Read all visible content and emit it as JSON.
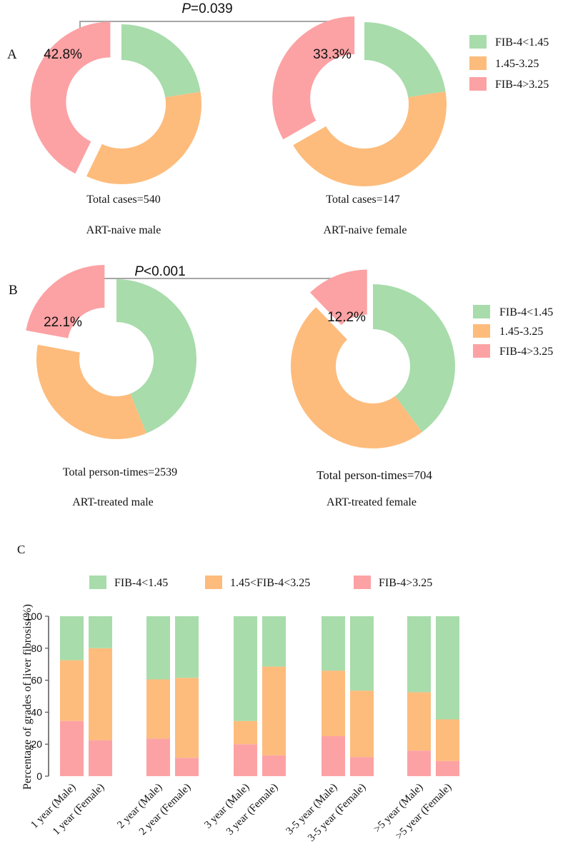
{
  "colors": {
    "green": "#a8dcab",
    "orange": "#fdbc7c",
    "pink": "#fca2a4",
    "bracket": "#a6a6a6",
    "axis": "#555555"
  },
  "chart_data": [
    {
      "panel": "A",
      "type": "pie",
      "variant": "donut-exploded",
      "p_value": "=0.039",
      "legend": [
        "FIB-4<1.45",
        "1.45-3.25",
        "FIB-4>3.25"
      ],
      "charts": [
        {
          "total_label": "Total cases=540",
          "group_label": "ART-naive male",
          "values": [
            22.5,
            34.7,
            42.8
          ],
          "highlight_label": "42.8%"
        },
        {
          "total_label": "Total cases=147",
          "group_label": "ART-naive female",
          "values": [
            22.5,
            44.2,
            33.3
          ],
          "highlight_label": "33.3%"
        }
      ]
    },
    {
      "panel": "B",
      "type": "pie",
      "variant": "donut-exploded",
      "p_value": "<0.001",
      "legend": [
        "FIB-4<1.45",
        "1.45-3.25",
        "FIB-4>3.25"
      ],
      "charts": [
        {
          "total_label": "Total person-times=2539",
          "group_label": "ART-treated male",
          "values": [
            43.9,
            34.0,
            22.1
          ],
          "highlight_label": "22.1%"
        },
        {
          "total_label": "Total person-times=704",
          "group_label": "ART-treated female",
          "values": [
            39.8,
            48.0,
            12.2
          ],
          "highlight_label": "12.2%"
        }
      ]
    },
    {
      "panel": "C",
      "type": "bar",
      "stacked": true,
      "ylabel": "Percentage of grades of liver fibrosis(%)",
      "ylim": [
        0,
        100
      ],
      "yticks": [
        0,
        20,
        40,
        60,
        80,
        100
      ],
      "legend": [
        "FIB-4<1.45",
        "1.45<FIB-4<3.25",
        "FIB-4>3.25"
      ],
      "categories": [
        "1 year (Male)",
        "1 year (Female)",
        "2 year (Male)",
        "2 year (Female)",
        "3 year (Male)",
        "3 year (Female)",
        "3-5 year (Male)",
        "3-5 year (Female)",
        ">5 year (Male)",
        ">5 year (Female)"
      ],
      "series": [
        {
          "name": "FIB-4>3.25",
          "values": [
            34.5,
            22.5,
            23.5,
            11.5,
            20,
            13,
            25,
            12,
            16,
            9.5
          ]
        },
        {
          "name": "1.45<FIB-4<3.25",
          "values": [
            38,
            57.5,
            37,
            50,
            14.5,
            55.5,
            41,
            41.5,
            36.5,
            26
          ]
        },
        {
          "name": "FIB-4<1.45",
          "values": [
            27.5,
            20,
            39.5,
            38.5,
            65.5,
            31.5,
            34,
            46.5,
            47.5,
            64.5
          ]
        }
      ]
    }
  ]
}
